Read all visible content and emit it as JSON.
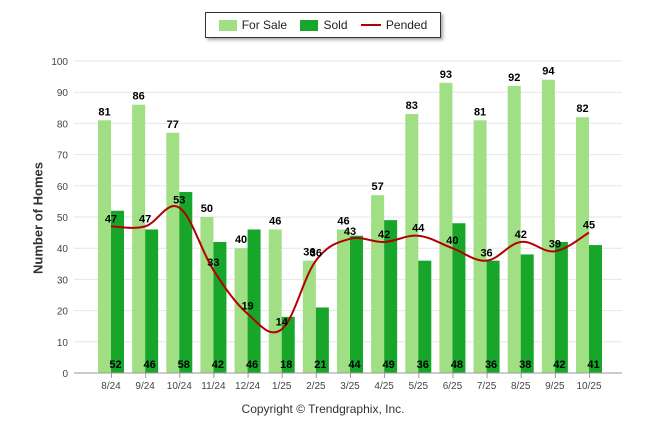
{
  "legend": {
    "for_sale": "For Sale",
    "sold": "Sold",
    "pended": "Pended"
  },
  "copyright": "Copyright © Trendgraphix, Inc.",
  "colors": {
    "for_sale": "#a1df85",
    "sold": "#17a62a",
    "pended": "#b30000",
    "grid": "#e6e6e6"
  },
  "chart_data": {
    "type": "bar",
    "title": "",
    "xlabel": "",
    "ylabel": "Number of Homes",
    "ylim": [
      0,
      100
    ],
    "yticks": [
      0,
      10,
      20,
      30,
      40,
      50,
      60,
      70,
      80,
      90,
      100
    ],
    "grid": true,
    "legend_position": "top-center",
    "categories": [
      "8/24",
      "9/24",
      "10/24",
      "11/24",
      "12/24",
      "1/25",
      "2/25",
      "3/25",
      "4/25",
      "5/25",
      "6/25",
      "7/25",
      "8/25",
      "9/25",
      "10/25"
    ],
    "series": [
      {
        "name": "For Sale",
        "type": "bar",
        "values": [
          81,
          86,
          77,
          50,
          40,
          46,
          36,
          46,
          57,
          83,
          93,
          81,
          92,
          94,
          82
        ]
      },
      {
        "name": "Sold",
        "type": "bar",
        "values": [
          52,
          46,
          58,
          42,
          46,
          18,
          21,
          44,
          49,
          36,
          48,
          36,
          38,
          42,
          41
        ]
      },
      {
        "name": "Pended",
        "type": "line",
        "values": [
          47,
          47,
          53,
          33,
          19,
          14,
          36,
          43,
          42,
          44,
          40,
          36,
          42,
          39,
          45
        ]
      }
    ]
  }
}
